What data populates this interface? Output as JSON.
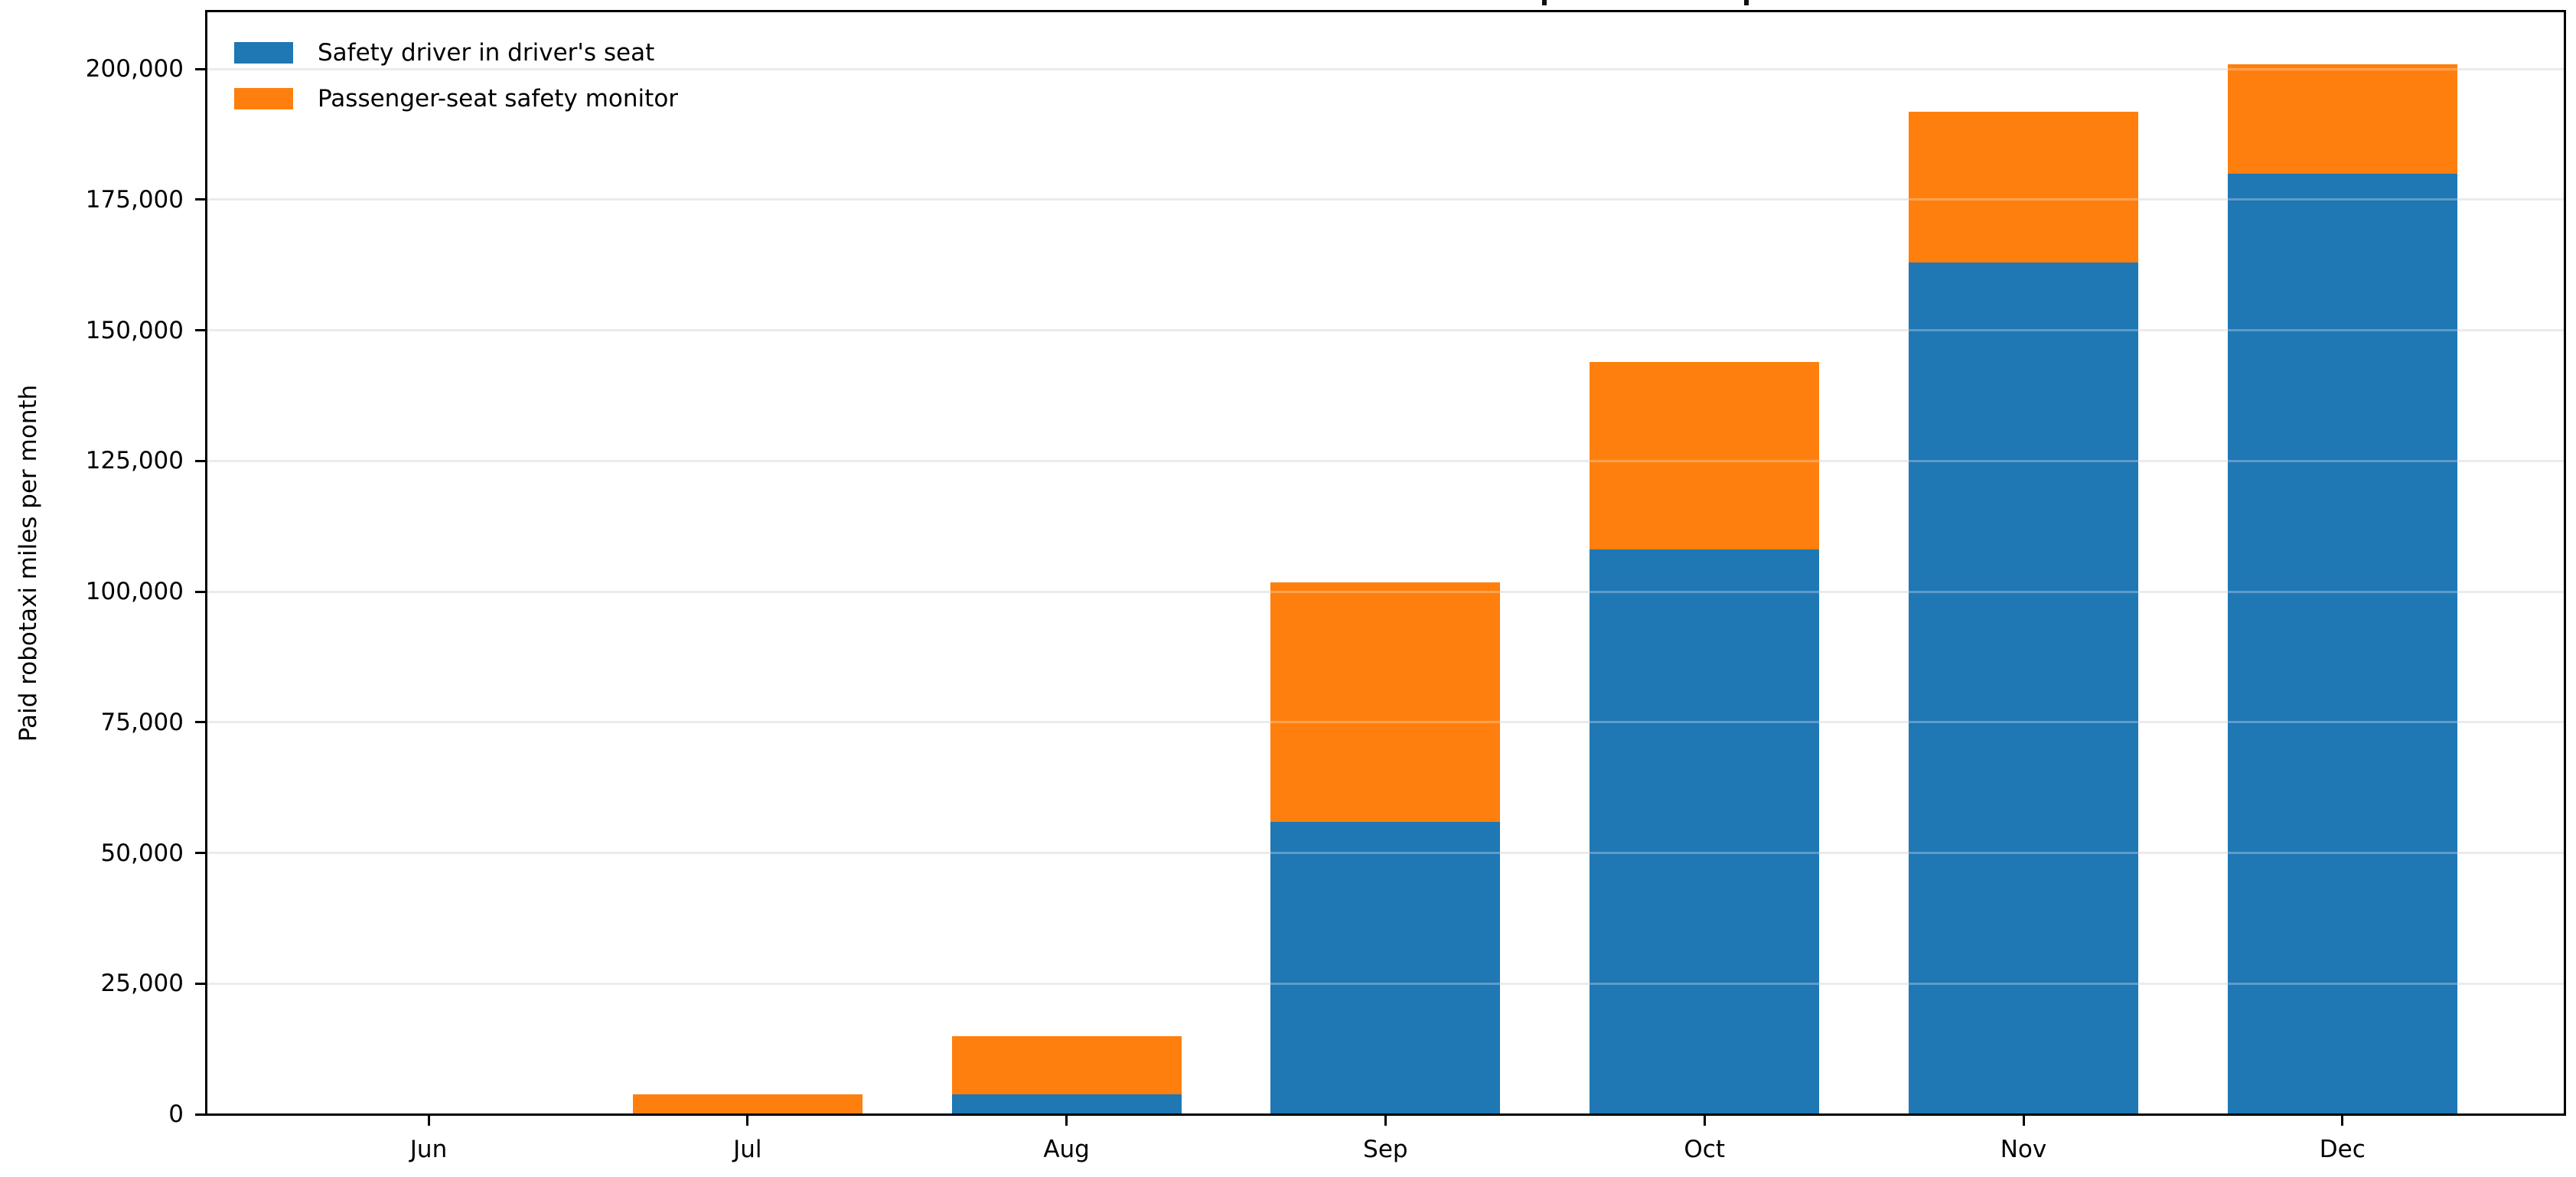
{
  "chart_data": {
    "type": "bar",
    "stacked": true,
    "categories": [
      "Jun",
      "Jul",
      "Aug",
      "Sep",
      "Oct",
      "Nov",
      "Dec"
    ],
    "series": [
      {
        "name": "Safety driver in driver's seat",
        "color": "#1f77b4",
        "values": [
          0,
          0,
          3800,
          56000,
          108100,
          163000,
          180000
        ]
      },
      {
        "name": "Passenger-seat safety monitor",
        "color": "#ff7f0e",
        "values": [
          0,
          3800,
          11100,
          45700,
          35800,
          28800,
          20900
        ]
      }
    ],
    "stack_totals": [
      0,
      3800,
      14900,
      101700,
      143900,
      191800,
      200900
    ],
    "xlabel": "",
    "ylabel": "Paid robotaxi miles per month",
    "ylim": [
      0,
      211000
    ],
    "yticks": [
      0,
      25000,
      50000,
      75000,
      100000,
      125000,
      150000,
      175000,
      200000
    ],
    "ytick_labels": [
      "0",
      "25,000",
      "50,000",
      "75,000",
      "100,000",
      "125,000",
      "150,000",
      "175,000",
      "200,000"
    ],
    "grid": true,
    "grid_color": "#e9e9e9",
    "legend_position": "upper left"
  }
}
